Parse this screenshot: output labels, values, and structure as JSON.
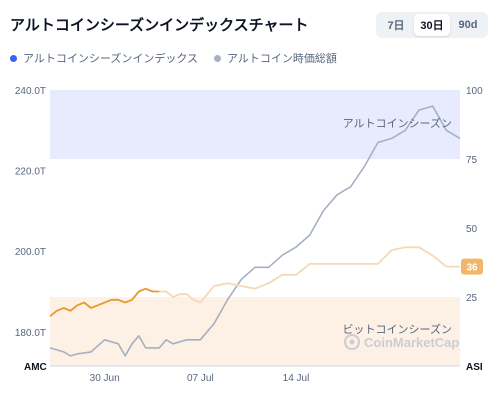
{
  "header": {
    "title": "アルトコインシーズンインデックスチャート"
  },
  "range_tabs": [
    {
      "label": "7日",
      "active": false
    },
    {
      "label": "30日",
      "active": true
    },
    {
      "label": "90d",
      "active": false
    }
  ],
  "legend": [
    {
      "label": "アルトコインシーズンインデックス",
      "color": "#3861fb"
    },
    {
      "label": "アルトコイン時価総額",
      "color": "#a6b0c3"
    }
  ],
  "chart_data": {
    "type": "line",
    "left_axis": {
      "ticks": [
        "240.0T",
        "220.0T",
        "200.0T",
        "180.0T"
      ],
      "values": [
        240,
        220,
        200,
        180
      ],
      "range": [
        171.5,
        240
      ],
      "label": "AMC"
    },
    "right_axis": {
      "ticks": [
        "100",
        "75",
        "50",
        "25"
      ],
      "values": [
        100,
        75,
        50,
        25
      ],
      "range": [
        0,
        100
      ],
      "label": "ASI"
    },
    "x_ticks": [
      "30 Jun",
      "07 Jul",
      "14 Jul"
    ],
    "x_tick_index": [
      4,
      11,
      18
    ],
    "zones": [
      {
        "label": "アルトコインシーズン",
        "from": 75,
        "to": 100,
        "color": "#e8ebfe"
      },
      {
        "label": "ビットコインシーズン",
        "from": 0,
        "to": 25,
        "color": "#fdf0e4"
      }
    ],
    "series": [
      {
        "name": "アルトコインシーズンインデックス",
        "axis": "right",
        "color_strong": "#e89a2c",
        "color_light": "#f5d9b4",
        "strong_until_index": 8,
        "x": [
          0,
          0.5,
          1,
          1.5,
          2,
          2.5,
          3,
          3.5,
          4,
          4.5,
          5,
          5.5,
          6,
          6.5,
          7,
          7.5,
          8,
          8.5,
          9,
          9.5,
          10,
          10.5,
          11,
          11.5,
          12,
          13,
          14,
          15,
          16,
          17,
          17.5,
          18,
          18.5,
          19,
          20,
          21,
          22,
          23,
          24,
          25,
          26,
          27,
          28,
          29,
          30
        ],
        "values": [
          18,
          20,
          21,
          20,
          22,
          23,
          21,
          22,
          23,
          24,
          24,
          23,
          24,
          27,
          28,
          27,
          27,
          27,
          25,
          26,
          26,
          24,
          23,
          26,
          29,
          30,
          29,
          28,
          30,
          33,
          33,
          33,
          35,
          37,
          37,
          37,
          37,
          37,
          37,
          42,
          43,
          43,
          40,
          36,
          36
        ],
        "last_value_label": "36"
      },
      {
        "name": "アルトコイン時価総額",
        "axis": "left",
        "color": "#a6b0c3",
        "x": [
          0,
          1,
          1.5,
          2,
          3,
          4,
          5,
          5.5,
          6,
          6.5,
          7,
          7.5,
          8,
          8.5,
          9,
          10,
          11,
          12,
          13,
          14,
          15,
          16,
          17,
          18,
          19,
          20,
          21,
          22,
          23,
          24,
          25,
          26,
          27,
          28,
          29,
          30
        ],
        "values": [
          176,
          175,
          174,
          174.5,
          175,
          178,
          177,
          174,
          177,
          179,
          176,
          176,
          176,
          178,
          177,
          178,
          178,
          182,
          188,
          193,
          196,
          196,
          199,
          201,
          204,
          210,
          214,
          216,
          221,
          227,
          228,
          230,
          235,
          236,
          230,
          228
        ]
      }
    ],
    "annotations": [
      "アルトコインシーズン",
      "ビットコインシーズン"
    ],
    "watermark": "CoinMarketCap"
  }
}
